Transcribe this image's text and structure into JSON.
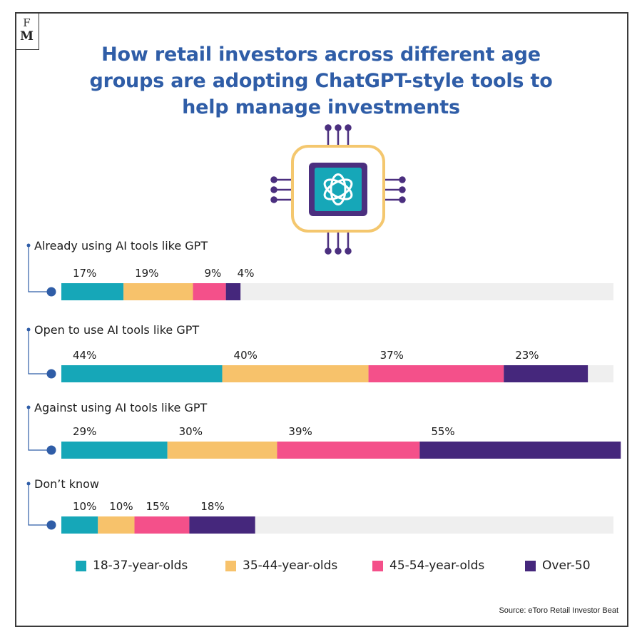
{
  "brand": {
    "logo_top": "F",
    "logo_bottom": "M"
  },
  "title_lines": [
    "How retail investors across different age",
    "groups are adopting ChatGPT-style tools to",
    "help manage investments"
  ],
  "illustration": {
    "icon": "chatgpt-chip-icon",
    "colors": {
      "frame": "#f4c76e",
      "core": "#4b2f7f",
      "screen": "#16a7b8"
    }
  },
  "chart_data": {
    "type": "bar",
    "orientation": "horizontal",
    "stacked": true,
    "xlim": [
      0,
      151
    ],
    "categories": [
      "Already using AI tools like GPT",
      "Open to use AI tools like GPT",
      "Against using AI tools like GPT",
      "Don’t know"
    ],
    "series": [
      {
        "name": "18-37-year-olds",
        "color": "#16a7b8",
        "values": [
          17,
          44,
          29,
          10
        ],
        "labels": [
          "17%",
          "44%",
          "29%",
          "10%"
        ]
      },
      {
        "name": "35-44-year-olds",
        "color": "#f7c26b",
        "values": [
          19,
          40,
          30,
          10
        ],
        "labels": [
          "19%",
          "40%",
          "30%",
          "10%"
        ]
      },
      {
        "name": "45-54-year-olds",
        "color": "#f4508a",
        "values": [
          9,
          37,
          39,
          15
        ],
        "labels": [
          "9%",
          "37%",
          "39%",
          "15%"
        ]
      },
      {
        "name": "Over-50",
        "color": "#45277c",
        "values": [
          4,
          23,
          55,
          18
        ],
        "labels": [
          "4%",
          "23%",
          "55%",
          "18%"
        ]
      }
    ],
    "track_color": "#efefef",
    "legend_position": "bottom"
  },
  "source": "Source: eToro Retail Investor Beat"
}
